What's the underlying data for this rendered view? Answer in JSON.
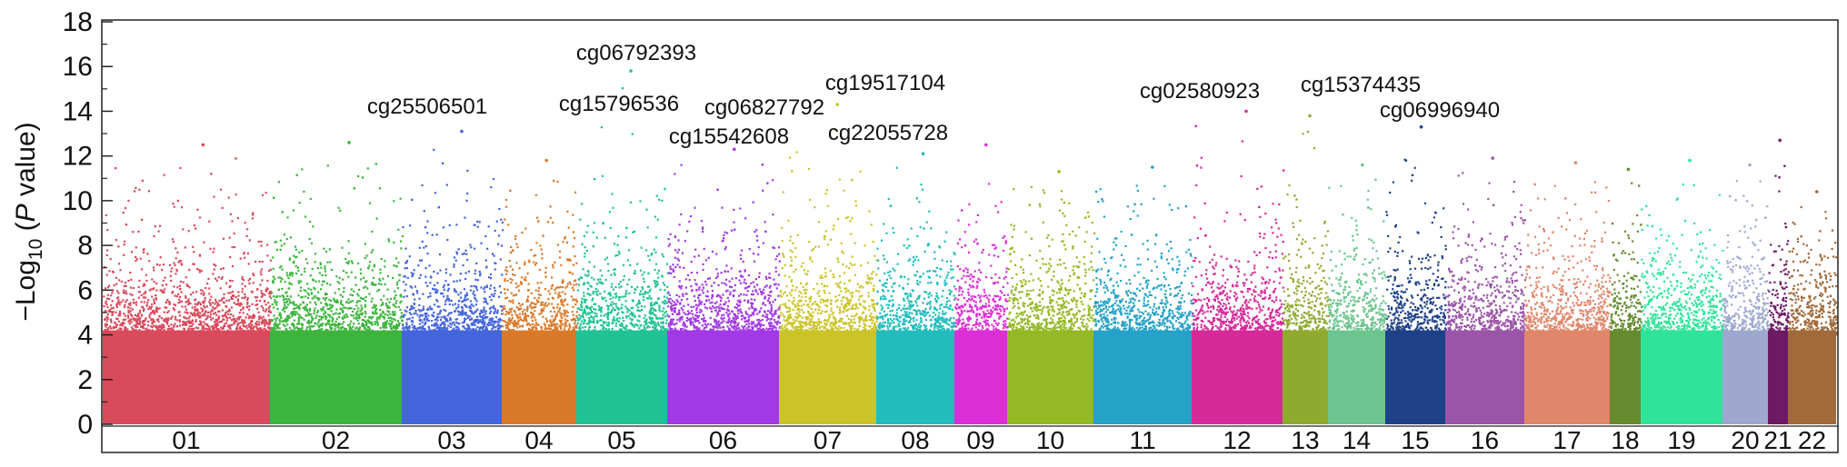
{
  "chart_data": {
    "type": "scatter",
    "subtype": "manhattan",
    "ylabel": {
      "prefix": "−Log",
      "sub": "10",
      "mid": " (",
      "italic": "P",
      "suffix": " value)"
    },
    "ylim": [
      0,
      18
    ],
    "yticks": [
      0,
      2,
      4,
      6,
      8,
      10,
      12,
      14,
      16,
      18
    ],
    "grid": false,
    "chromosomes": [
      {
        "label": "01",
        "color": "#d94a5c",
        "peak": 12.5
      },
      {
        "label": "02",
        "color": "#3db53d",
        "peak": 12.6
      },
      {
        "label": "03",
        "color": "#4565dc",
        "peak": 13.1
      },
      {
        "label": "04",
        "color": "#d97a2b",
        "peak": 11.8
      },
      {
        "label": "05",
        "color": "#21c394",
        "peak": 15.8
      },
      {
        "label": "06",
        "color": "#a239e6",
        "peak": 12.3
      },
      {
        "label": "07",
        "color": "#cbc428",
        "peak": 14.3
      },
      {
        "label": "08",
        "color": "#22bcbc",
        "peak": 12.1
      },
      {
        "label": "09",
        "color": "#dc2ed6",
        "peak": 12.5
      },
      {
        "label": "10",
        "color": "#95b825",
        "peak": 11.3
      },
      {
        "label": "11",
        "color": "#25a2c8",
        "peak": 11.5
      },
      {
        "label": "12",
        "color": "#d62a9a",
        "peak": 14.0
      },
      {
        "label": "13",
        "color": "#90aa30",
        "peak": 13.8
      },
      {
        "label": "14",
        "color": "#6cc48e",
        "peak": 11.6
      },
      {
        "label": "15",
        "color": "#1f4188",
        "peak": 13.3
      },
      {
        "label": "16",
        "color": "#9a55a8",
        "peak": 11.9
      },
      {
        "label": "17",
        "color": "#e0866a",
        "peak": 11.7
      },
      {
        "label": "18",
        "color": "#648c2e",
        "peak": 11.4
      },
      {
        "label": "19",
        "color": "#30e39b",
        "peak": 11.8
      },
      {
        "label": "20",
        "color": "#9ea8cf",
        "peak": 11.6
      },
      {
        "label": "21",
        "color": "#6c1a64",
        "peak": 12.7
      },
      {
        "label": "22",
        "color": "#a06a3a",
        "peak": 10.4
      }
    ],
    "annotations": [
      {
        "label": "cg25506501",
        "chromosome": "03",
        "y": 13.1
      },
      {
        "label": "cg06792393",
        "chromosome": "05",
        "y": 15.8
      },
      {
        "label": "cg15796536",
        "chromosome": "05",
        "y": 13.6
      },
      {
        "label": "cg15542608",
        "chromosome": "06",
        "y": 12.3
      },
      {
        "label": "cg06827792",
        "chromosome": "07",
        "y": 12.9
      },
      {
        "label": "cg19517104",
        "chromosome": "07",
        "y": 14.3
      },
      {
        "label": "cg22055728",
        "chromosome": "07",
        "y": 12.9
      },
      {
        "label": "cg02580923",
        "chromosome": "12",
        "y": 14.0
      },
      {
        "label": "cg15374435",
        "chromosome": "13",
        "y": 13.8
      },
      {
        "label": "cg06996940",
        "chromosome": "15",
        "y": 13.3
      }
    ]
  }
}
